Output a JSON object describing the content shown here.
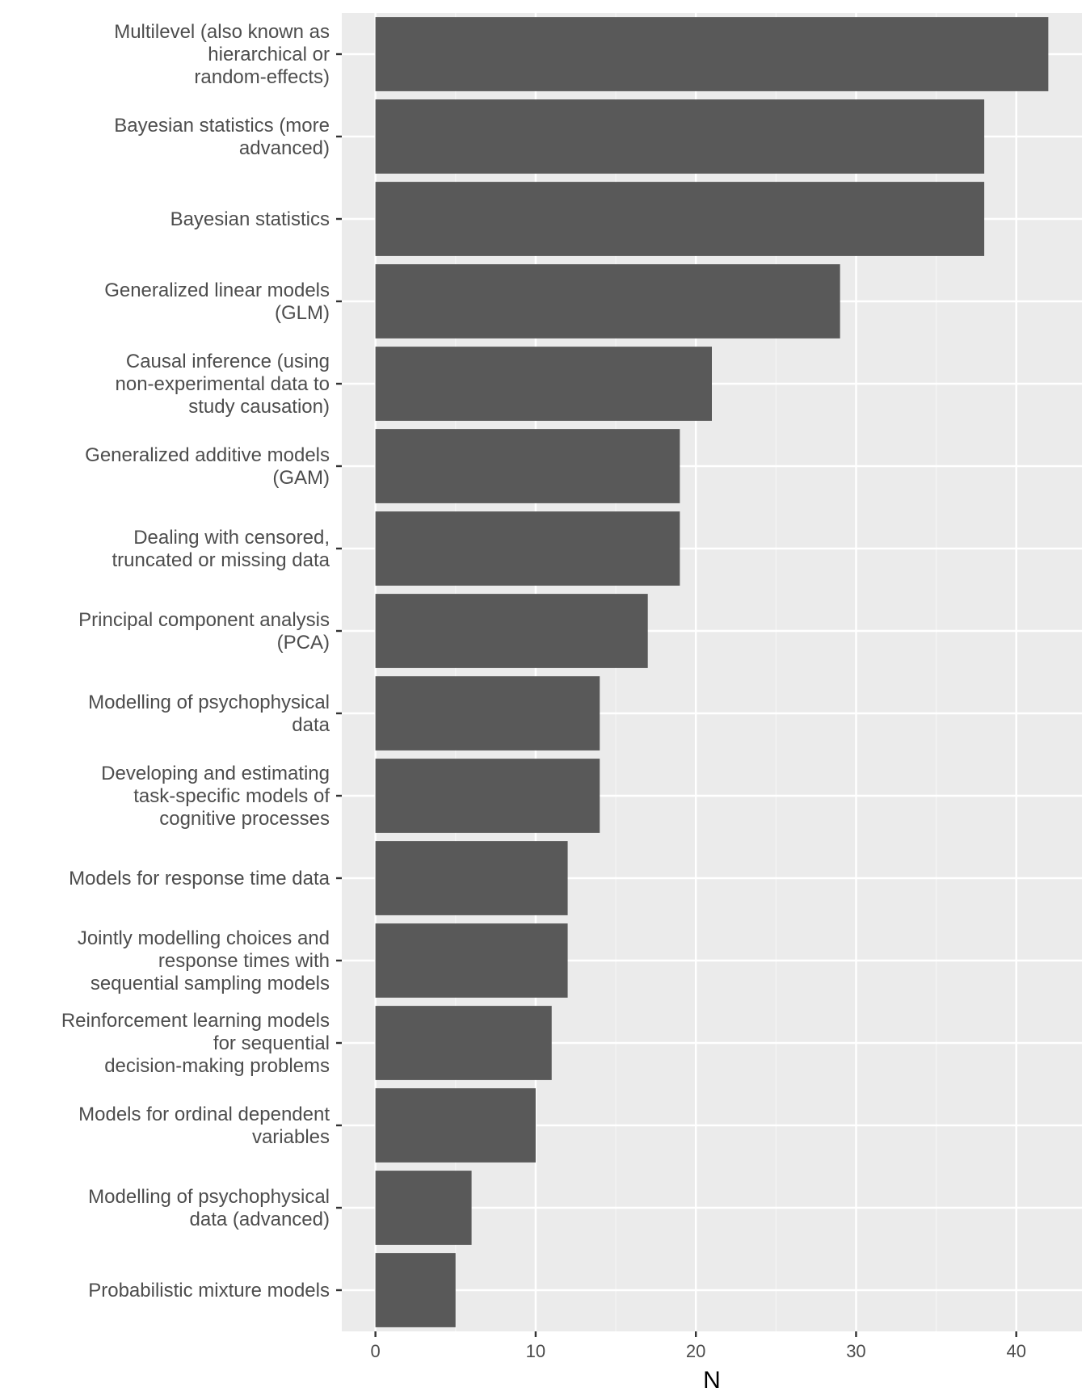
{
  "chart_data": {
    "type": "bar",
    "orientation": "horizontal",
    "categories": [
      "Multilevel (also known as hierarchical or random-effects)",
      "Bayesian statistics (more advanced)",
      "Bayesian statistics",
      "Generalized linear models (GLM)",
      "Causal inference (using non-experimental data to study causation)",
      "Generalized additive models (GAM)",
      "Dealing with censored, truncated or missing data",
      "Principal component analysis (PCA)",
      "Modelling of psychophysical data",
      "Developing and estimating task-specific models of cognitive processes",
      "Models for response time data",
      "Jointly modelling choices and response times with sequential sampling models",
      "Reinforcement learning models for sequential decision-making problems",
      "Models for ordinal dependent variables",
      "Modelling of psychophysical data (advanced)",
      "Probabilistic mixture models"
    ],
    "category_lines": [
      [
        "Multilevel (also known as",
        "hierarchical or",
        "random-effects)"
      ],
      [
        "Bayesian statistics (more",
        "advanced)"
      ],
      [
        "Bayesian statistics"
      ],
      [
        "Generalized linear models",
        "(GLM)"
      ],
      [
        "Causal inference (using",
        "non-experimental data to",
        "study causation)"
      ],
      [
        "Generalized additive models",
        "(GAM)"
      ],
      [
        "Dealing with censored,",
        "truncated or missing data"
      ],
      [
        "Principal component analysis",
        "(PCA)"
      ],
      [
        "Modelling of psychophysical",
        "data"
      ],
      [
        "Developing and estimating",
        "task-specific models of",
        "cognitive processes"
      ],
      [
        "Models for response time data"
      ],
      [
        "Jointly modelling choices and",
        "response times with",
        "sequential sampling models"
      ],
      [
        "Reinforcement learning models",
        "for sequential",
        "decision-making problems"
      ],
      [
        "Models for ordinal dependent",
        "variables"
      ],
      [
        "Modelling of psychophysical",
        "data (advanced)"
      ],
      [
        "Probabilistic mixture models"
      ]
    ],
    "values": [
      42,
      38,
      38,
      29,
      21,
      19,
      19,
      17,
      14,
      14,
      12,
      12,
      11,
      10,
      6,
      5
    ],
    "xlabel": "N",
    "ylabel": "",
    "xlim": [
      -2.1,
      44.1
    ],
    "xticks": [
      0,
      10,
      20,
      30,
      40
    ],
    "grid": true,
    "colors": {
      "bar": "#595959",
      "panel": "#ebebeb",
      "grid_major": "#ffffff",
      "grid_minor": "#f5f5f5",
      "tick": "#333333"
    }
  }
}
